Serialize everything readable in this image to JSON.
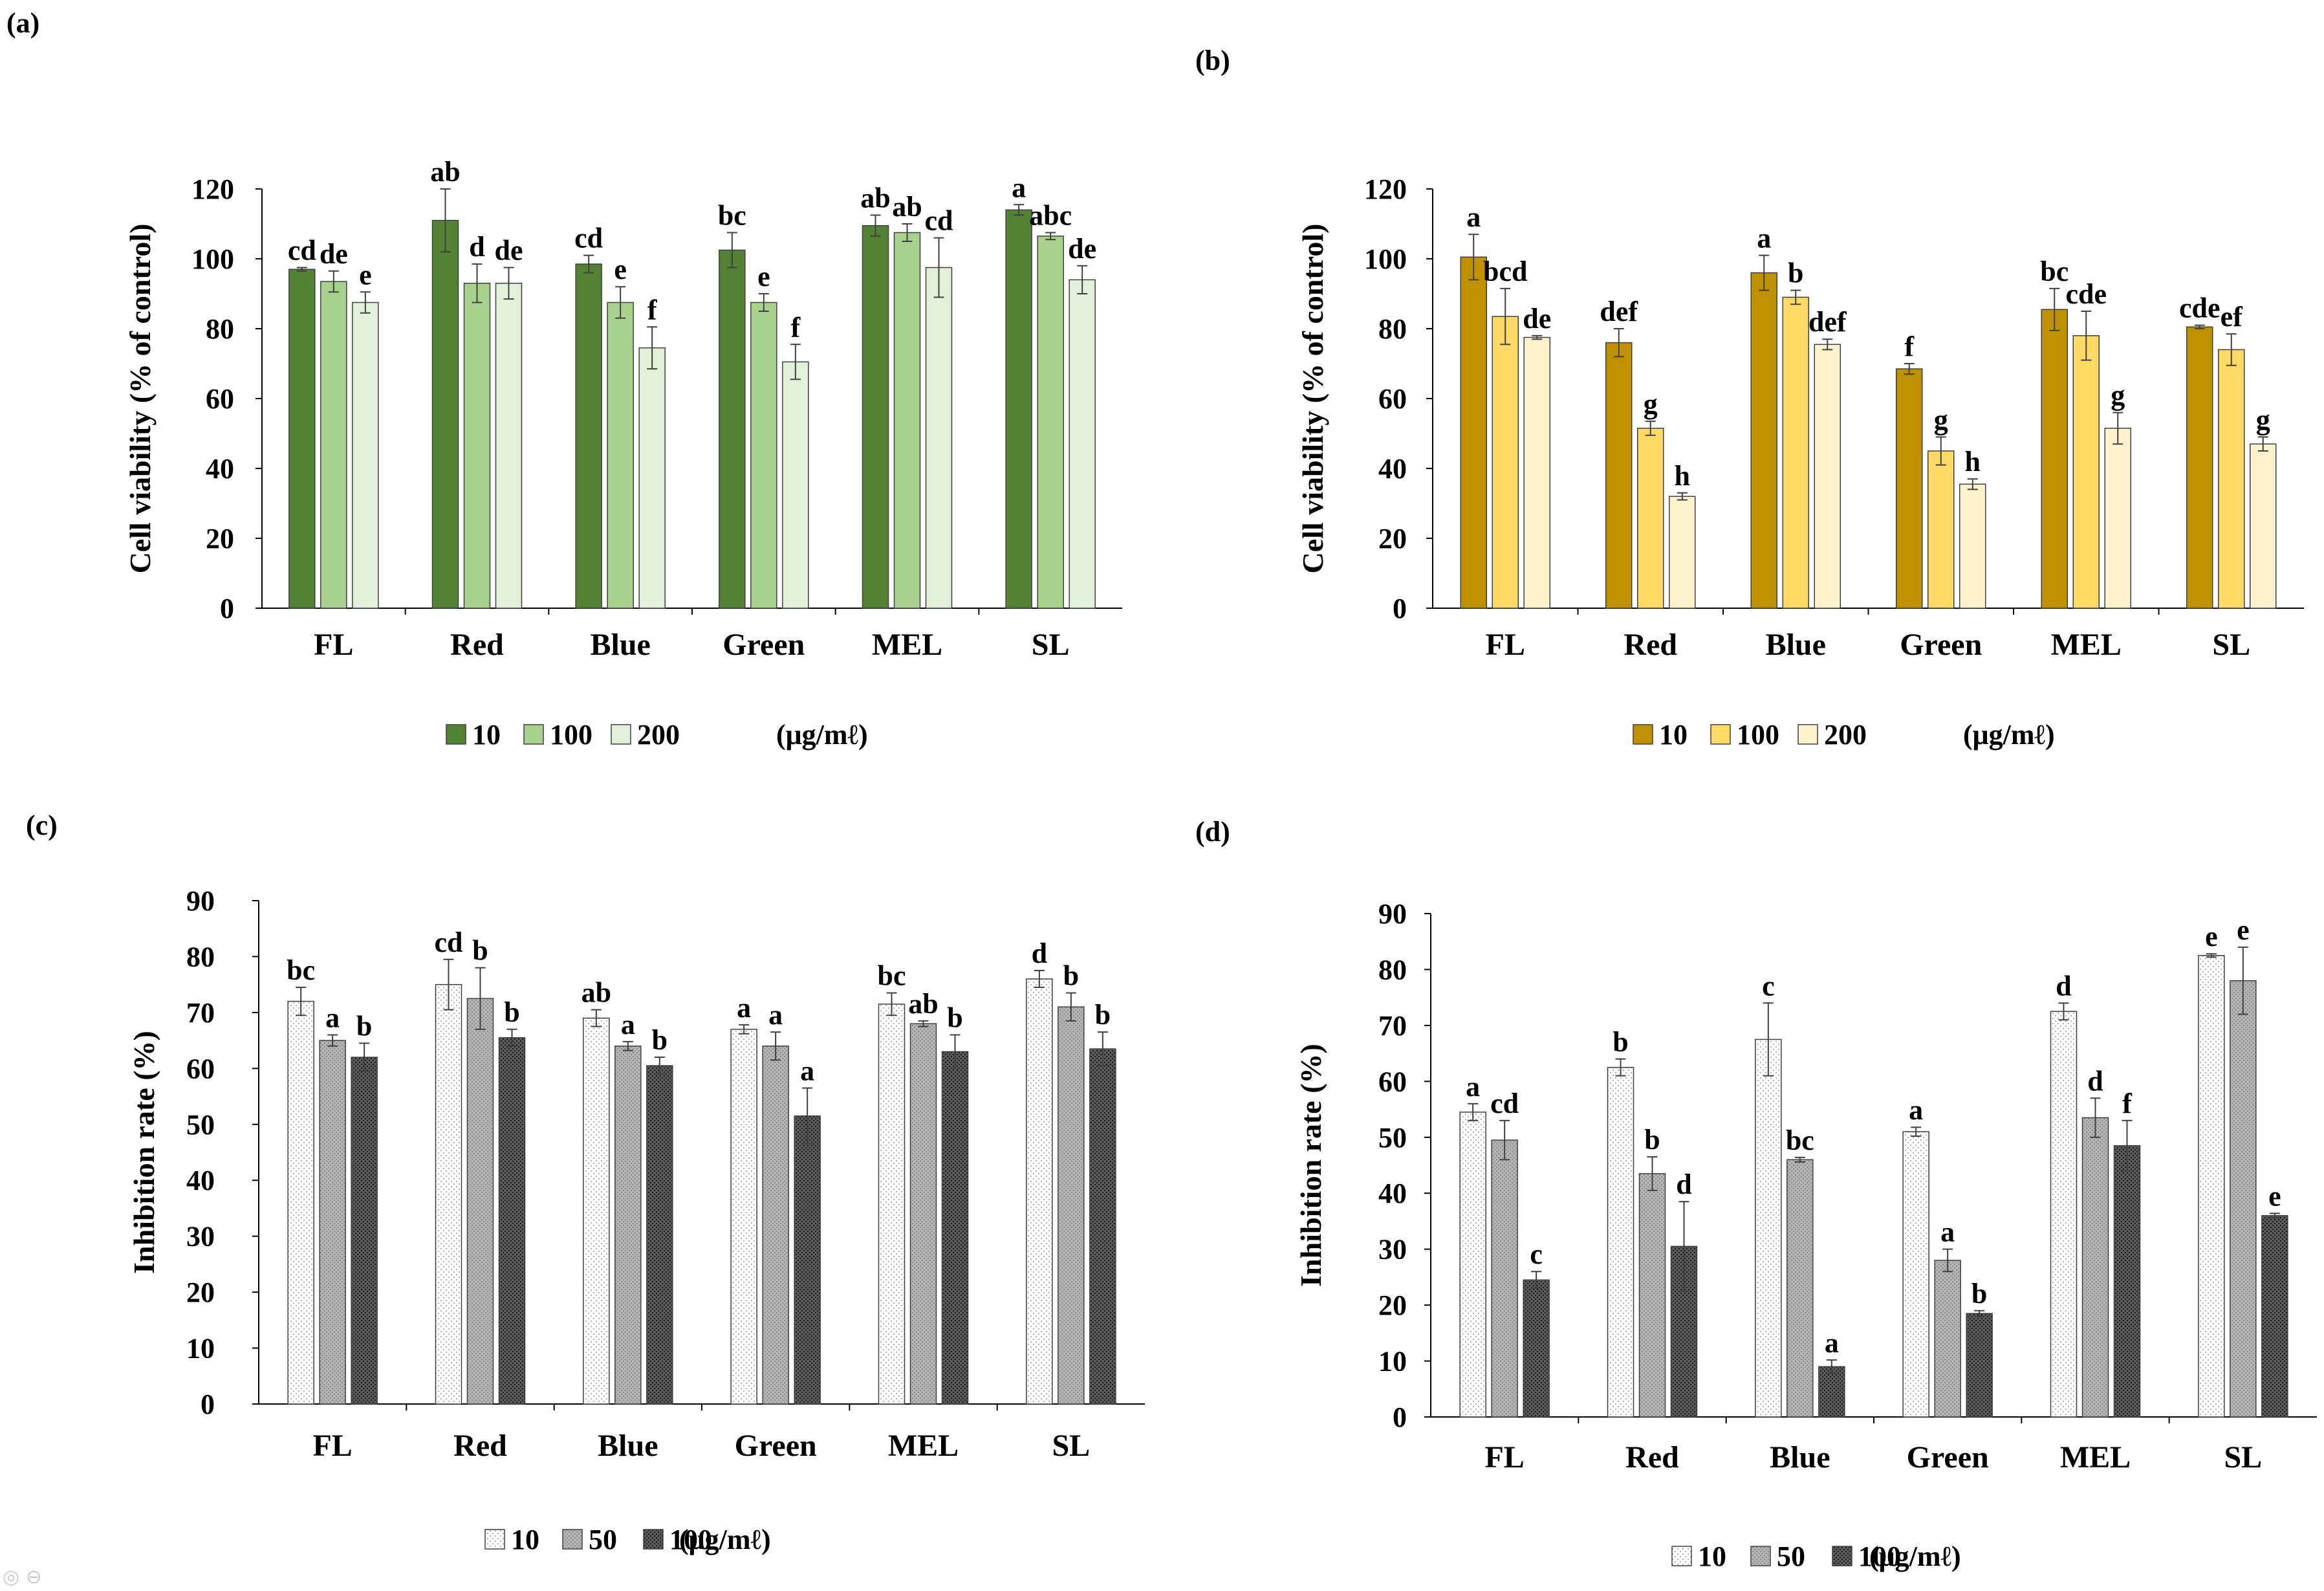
{
  "chart_data": [
    {
      "type": "bar",
      "panel_label": "(a)",
      "title": "",
      "xlabel": "",
      "ylabel": "Cell viability (% of control)",
      "ylim": [
        0,
        120
      ],
      "yticks": [
        0,
        20,
        40,
        60,
        80,
        100,
        120
      ],
      "grid": false,
      "categories": [
        "FL",
        "Red",
        "Blue",
        "Green",
        "MEL",
        "SL"
      ],
      "series": [
        {
          "name": "10",
          "color": "#548235",
          "values": [
            97,
            111,
            98.5,
            102.5,
            109.5,
            114
          ],
          "errors": [
            0.5,
            9,
            2.5,
            5,
            3,
            1.5
          ],
          "labels": [
            "cd",
            "ab",
            "cd",
            "bc",
            "ab",
            "a"
          ]
        },
        {
          "name": "100",
          "color": "#a9d18e",
          "values": [
            93.5,
            93,
            87.5,
            87.5,
            107.5,
            106.5
          ],
          "errors": [
            3,
            5.5,
            4.5,
            2.5,
            2.5,
            1
          ],
          "labels": [
            "de",
            "d",
            "e",
            "e",
            "ab",
            "abc"
          ]
        },
        {
          "name": "200",
          "color": "#e2f0d9",
          "values": [
            87.5,
            93,
            74.5,
            70.5,
            97.5,
            94
          ],
          "errors": [
            3,
            4.5,
            6,
            5,
            8.5,
            4
          ],
          "labels": [
            "e",
            "de",
            "f",
            "f",
            "cd",
            "de"
          ]
        }
      ],
      "legend": {
        "unit": "(μg/mℓ)",
        "position": "bottom"
      }
    },
    {
      "type": "bar",
      "panel_label": "(b)",
      "title": "",
      "xlabel": "",
      "ylabel": "Cell viability (% of control)",
      "ylim": [
        0,
        120
      ],
      "yticks": [
        0,
        20,
        40,
        60,
        80,
        100,
        120
      ],
      "grid": false,
      "categories": [
        "FL",
        "Red",
        "Blue",
        "Green",
        "MEL",
        "SL"
      ],
      "series": [
        {
          "name": "10",
          "color": "#bf9000",
          "values": [
            100.5,
            76,
            96,
            68.5,
            85.5,
            80.5
          ],
          "errors": [
            6.5,
            4,
            5,
            1.5,
            6,
            0.5
          ],
          "labels": [
            "a",
            "def",
            "a",
            "f",
            "bc",
            "cde"
          ]
        },
        {
          "name": "100",
          "color": "#ffd966",
          "values": [
            83.5,
            51.5,
            89,
            45,
            78,
            74
          ],
          "errors": [
            8,
            2,
            2,
            4,
            7,
            4.5
          ],
          "labels": [
            "bcd",
            "g",
            "b",
            "g",
            "cde",
            "ef"
          ]
        },
        {
          "name": "200",
          "color": "#fff2cc",
          "values": [
            77.5,
            32,
            75.5,
            35.5,
            51.5,
            47
          ],
          "errors": [
            0.5,
            1,
            1.5,
            1.5,
            4.5,
            2
          ],
          "labels": [
            "de",
            "h",
            "def",
            "h",
            "g",
            "g"
          ]
        }
      ],
      "legend": {
        "unit": "(μg/mℓ)",
        "position": "bottom"
      }
    },
    {
      "type": "bar",
      "panel_label": "(c)",
      "title": "",
      "xlabel": "",
      "ylabel": "Inhibition rate (%)",
      "ylim": [
        0,
        90
      ],
      "yticks": [
        0,
        10,
        20,
        30,
        40,
        50,
        60,
        70,
        80,
        90
      ],
      "grid": false,
      "categories": [
        "FL",
        "Red",
        "Blue",
        "Green",
        "MEL",
        "SL"
      ],
      "series": [
        {
          "name": "10",
          "pattern": "light",
          "values": [
            72,
            75,
            69,
            67,
            71.5,
            76
          ],
          "errors": [
            2.5,
            4.5,
            1.5,
            0.8,
            2,
            1.5
          ],
          "labels": [
            "bc",
            "cd",
            "ab",
            "a",
            "bc",
            "d"
          ]
        },
        {
          "name": "50",
          "pattern": "medium",
          "values": [
            65,
            72.5,
            64,
            64,
            68,
            71
          ],
          "errors": [
            1,
            5.5,
            0.8,
            2.5,
            0.5,
            2.5
          ],
          "labels": [
            "a",
            "b",
            "a",
            "a",
            "ab",
            "b"
          ]
        },
        {
          "name": "100",
          "pattern": "dark",
          "values": [
            62,
            65.5,
            60.5,
            51.5,
            63,
            63.5
          ],
          "errors": [
            2.5,
            1.5,
            1.5,
            5,
            3,
            3
          ],
          "labels": [
            "b",
            "b",
            "b",
            "a",
            "b",
            "b"
          ]
        }
      ],
      "legend": {
        "unit": "(μg/mℓ)",
        "position": "bottom"
      }
    },
    {
      "type": "bar",
      "panel_label": "(d)",
      "title": "",
      "xlabel": "",
      "ylabel": "Inhibition rate (%)",
      "ylim": [
        0,
        90
      ],
      "yticks": [
        0,
        10,
        20,
        30,
        40,
        50,
        60,
        70,
        80,
        90
      ],
      "grid": false,
      "categories": [
        "FL",
        "Red",
        "Blue",
        "Green",
        "MEL",
        "SL"
      ],
      "series": [
        {
          "name": "10",
          "pattern": "light",
          "values": [
            54.5,
            62.5,
            67.5,
            51,
            72.5,
            82.5
          ],
          "errors": [
            1.5,
            1.5,
            6.5,
            0.8,
            1.5,
            0.3
          ],
          "labels": [
            "a",
            "b",
            "c",
            "a",
            "d",
            "e"
          ]
        },
        {
          "name": "50",
          "pattern": "medium",
          "values": [
            49.5,
            43.5,
            46,
            28,
            53.5,
            78
          ],
          "errors": [
            3.5,
            3,
            0.4,
            2,
            3.5,
            6
          ],
          "labels": [
            "cd",
            "b",
            "bc",
            "a",
            "d",
            "e"
          ]
        },
        {
          "name": "100",
          "pattern": "dark",
          "values": [
            24.5,
            30.5,
            9,
            18.5,
            48.5,
            36
          ],
          "errors": [
            1.5,
            8,
            1.2,
            0.5,
            4.5,
            0.4
          ],
          "labels": [
            "c",
            "d",
            "a",
            "b",
            "f",
            "e"
          ]
        }
      ],
      "legend": {
        "unit": "(μg/mℓ)",
        "position": "bottom"
      }
    }
  ]
}
